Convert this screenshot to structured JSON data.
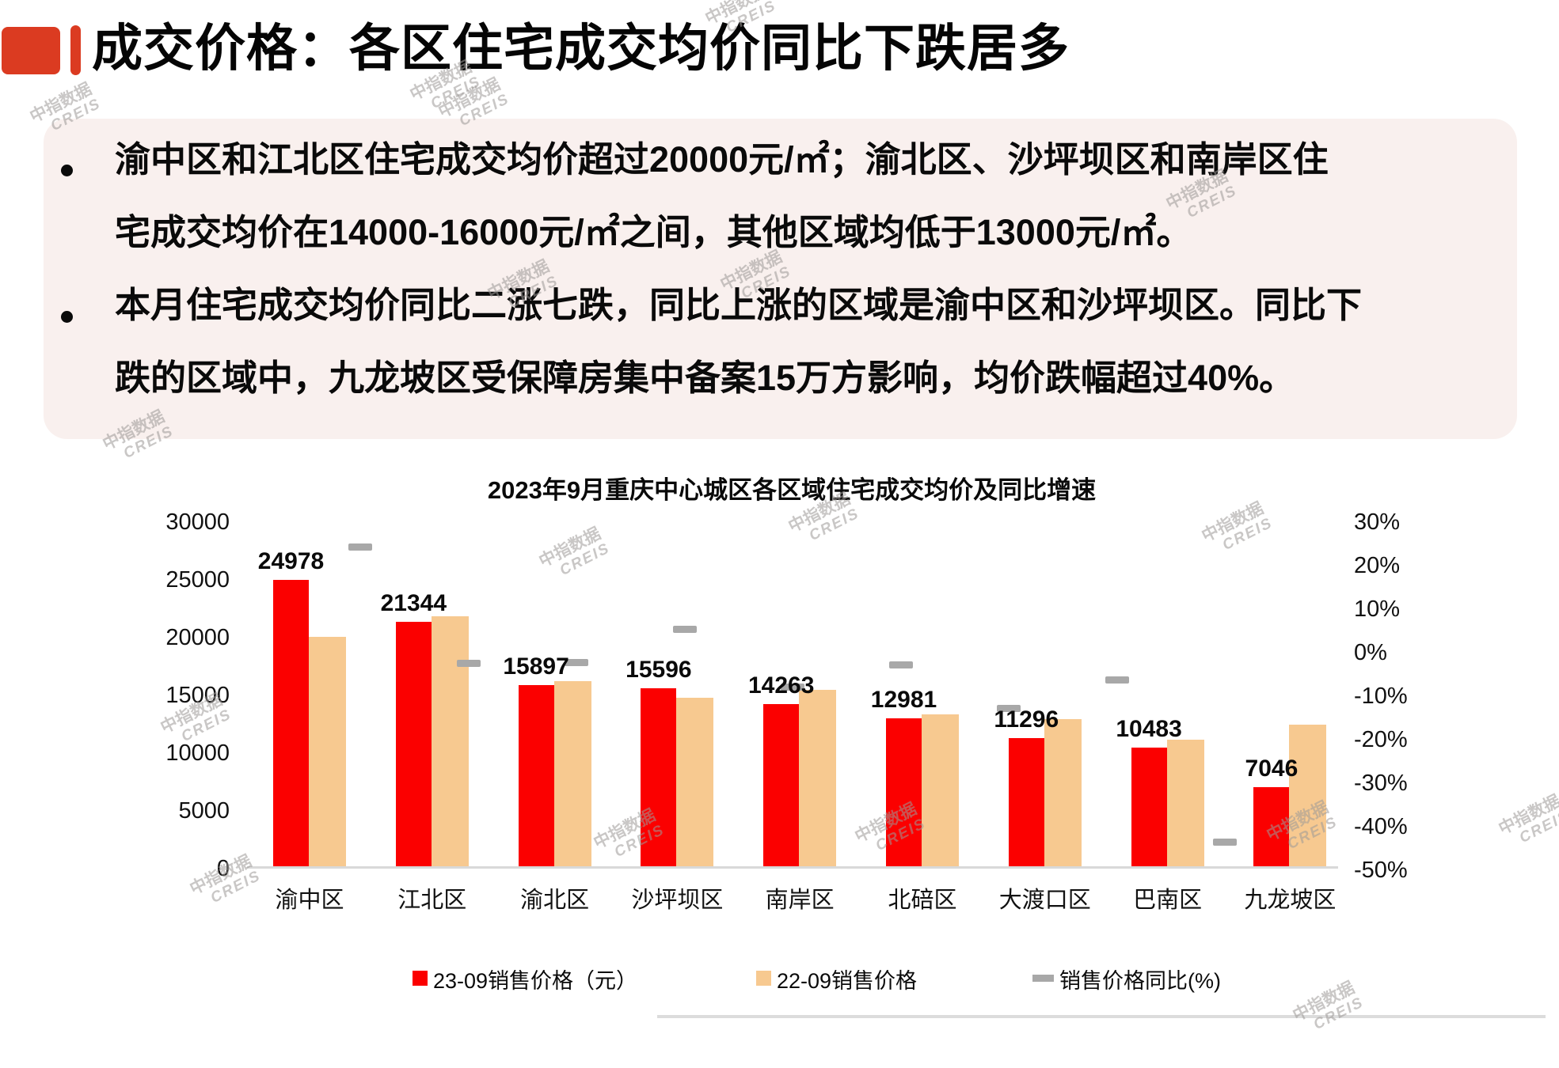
{
  "page": {
    "title": "成交价格：各区住宅成交均价同比下跌居多",
    "accent_color": "#DB3B21",
    "bullet_box_color": "#F9F0EE"
  },
  "bullets": [
    {
      "lines": [
        "渝中区和江北区住宅成交均价超过20000元/㎡；渝北区、沙坪坝区和南岸区住",
        "宅成交均价在14000-16000元/㎡之间，其他区域均低于13000元/㎡。"
      ]
    },
    {
      "lines": [
        "本月住宅成交均价同比二涨七跌，同比上涨的区域是渝中区和沙坪坝区。同比下",
        "跌的区域中，九龙坡区受保障房集中备案15万方影响，均价跌幅超过40%。"
      ]
    }
  ],
  "watermark": {
    "text": "中指数据",
    "subtext": "CREIS"
  },
  "chart_data": {
    "type": "bar",
    "title": "2023年9月重庆中心城区各区域住宅成交均价及同比增速",
    "categories": [
      "渝中区",
      "江北区",
      "渝北区",
      "沙坪坝区",
      "南岸区",
      "北碚区",
      "大渡口区",
      "巴南区",
      "九龙坡区"
    ],
    "series": [
      {
        "name": "23-09销售价格（元）",
        "type": "bar",
        "axis": "left",
        "color": "#FB0000",
        "values": [
          24978,
          21344,
          15897,
          15596,
          14263,
          12981,
          11296,
          10483,
          7046
        ],
        "data_labels": true
      },
      {
        "name": "22-09销售价格",
        "type": "bar",
        "axis": "left",
        "color": "#F7C990",
        "values": [
          20100,
          21850,
          16230,
          14800,
          15480,
          13360,
          12950,
          11160,
          12470
        ],
        "data_labels": false
      },
      {
        "name": "销售价格同比(%)",
        "type": "dash",
        "axis": "right",
        "color": "#A8A8A8",
        "values": [
          24.3,
          -2.3,
          -2.1,
          5.4,
          -7.9,
          -2.8,
          -12.8,
          -6.1,
          -43.5
        ],
        "data_labels": false
      }
    ],
    "left_axis": {
      "min": 0,
      "max": 30000,
      "step": 5000,
      "ticks": [
        "0",
        "5000",
        "10000",
        "15000",
        "20000",
        "25000",
        "30000"
      ]
    },
    "right_axis": {
      "min": -50,
      "max": 30,
      "step": 10,
      "ticks": [
        "30%",
        "20%",
        "10%",
        "0%",
        "-10%",
        "-20%",
        "-30%",
        "-40%",
        "-50%"
      ]
    },
    "grid": false,
    "legend_position": "bottom"
  }
}
